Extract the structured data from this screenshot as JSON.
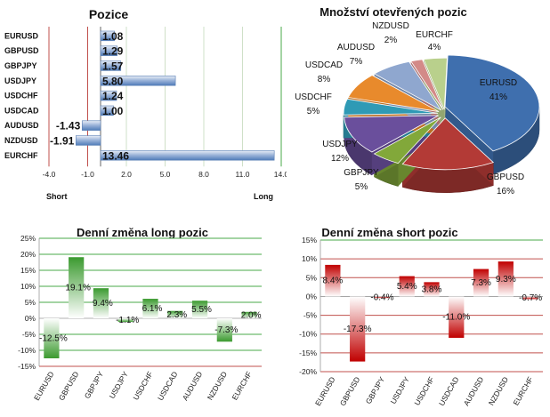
{
  "chart_data": [
    {
      "type": "bar",
      "orientation": "horizontal",
      "title": "Pozice",
      "categories": [
        "EURUSD",
        "GBPUSD",
        "GBPJPY",
        "USDJPY",
        "USDCHF",
        "USDCAD",
        "AUDUSD",
        "NZDUSD",
        "EURCHF"
      ],
      "values": [
        1.08,
        1.29,
        1.57,
        5.8,
        1.24,
        1.0,
        -1.43,
        -1.91,
        13.46
      ],
      "value_labels": [
        "1.08",
        "1.29",
        "1.57",
        "5.80",
        "1.24",
        "1.00",
        "-1.43",
        "-1.91",
        "13.46"
      ],
      "xlim": [
        -4.0,
        14.0
      ],
      "xticks": [
        "-4.0",
        "-1.0",
        "2.0",
        "5.0",
        "8.0",
        "11.0",
        "14.0"
      ],
      "left_label": "Short",
      "right_label": "Long",
      "colors": {
        "bar": "#4f7bb8",
        "short_line": "#c0504d",
        "long_line": "#4aa84a"
      }
    },
    {
      "type": "pie",
      "title": "Množství otevřených pozic",
      "categories": [
        "EURUSD",
        "GBPUSD",
        "GBPJPY",
        "USDJPY",
        "USDCHF",
        "USDCAD",
        "AUDUSD",
        "NZDUSD",
        "EURCHF"
      ],
      "values": [
        41,
        16,
        5,
        12,
        5,
        8,
        7,
        2,
        4
      ],
      "value_labels": [
        "41%",
        "16%",
        "5%",
        "12%",
        "5%",
        "8%",
        "7%",
        "2%",
        "4%"
      ],
      "colors": [
        "#3f6fae",
        "#b33a36",
        "#82a83a",
        "#6a4f9c",
        "#2f9ab5",
        "#e88a2c",
        "#8fa7cf",
        "#d38a88",
        "#b9d08c"
      ]
    },
    {
      "type": "bar",
      "title": "Denní změna long pozic",
      "categories": [
        "EURUSD",
        "GBPUSD",
        "GBPJPY",
        "USDJPY",
        "USDCHF",
        "USDCAD",
        "AUDUSD",
        "NZDUSD",
        "EURCHF"
      ],
      "values": [
        -12.5,
        19.1,
        9.4,
        -1.1,
        6.1,
        2.3,
        5.5,
        -7.3,
        2.0
      ],
      "value_labels": [
        "-12.5%",
        "19.1%",
        "9.4%",
        "-1.1%",
        "6.1%",
        "2.3%",
        "5.5%",
        "-7.3%",
        "2.0%"
      ],
      "ylim": [
        -15,
        25
      ],
      "yticks": [
        "25%",
        "20%",
        "15%",
        "10%",
        "5%",
        "0%",
        "-5%",
        "-10%",
        "-15%"
      ],
      "colors": {
        "bar": "#3b9a2f",
        "grid": "#4aa84a",
        "bottom": "#c0504d"
      }
    },
    {
      "type": "bar",
      "title": "Denní změna short pozic",
      "categories": [
        "EURUSD",
        "GBPUSD",
        "GBPJPY",
        "USDJPY",
        "USDCHF",
        "USDCAD",
        "AUDUSD",
        "NZDUSD",
        "EURCHF"
      ],
      "values": [
        8.4,
        -17.3,
        -0.4,
        5.4,
        3.8,
        -11.0,
        7.3,
        9.3,
        -0.7
      ],
      "value_labels": [
        "8.4%",
        "-17.3%",
        "-0.4%",
        "5.4%",
        "3.8%",
        "-11.0%",
        "7.3%",
        "9.3%",
        "-0.7%"
      ],
      "ylim": [
        -20,
        15
      ],
      "yticks": [
        "15%",
        "10%",
        "5%",
        "0%",
        "-5%",
        "-10%",
        "-15%",
        "-20%"
      ],
      "colors": {
        "bar": "#c00000",
        "grid": "#c0504d",
        "top": "#4aa84a"
      }
    }
  ]
}
